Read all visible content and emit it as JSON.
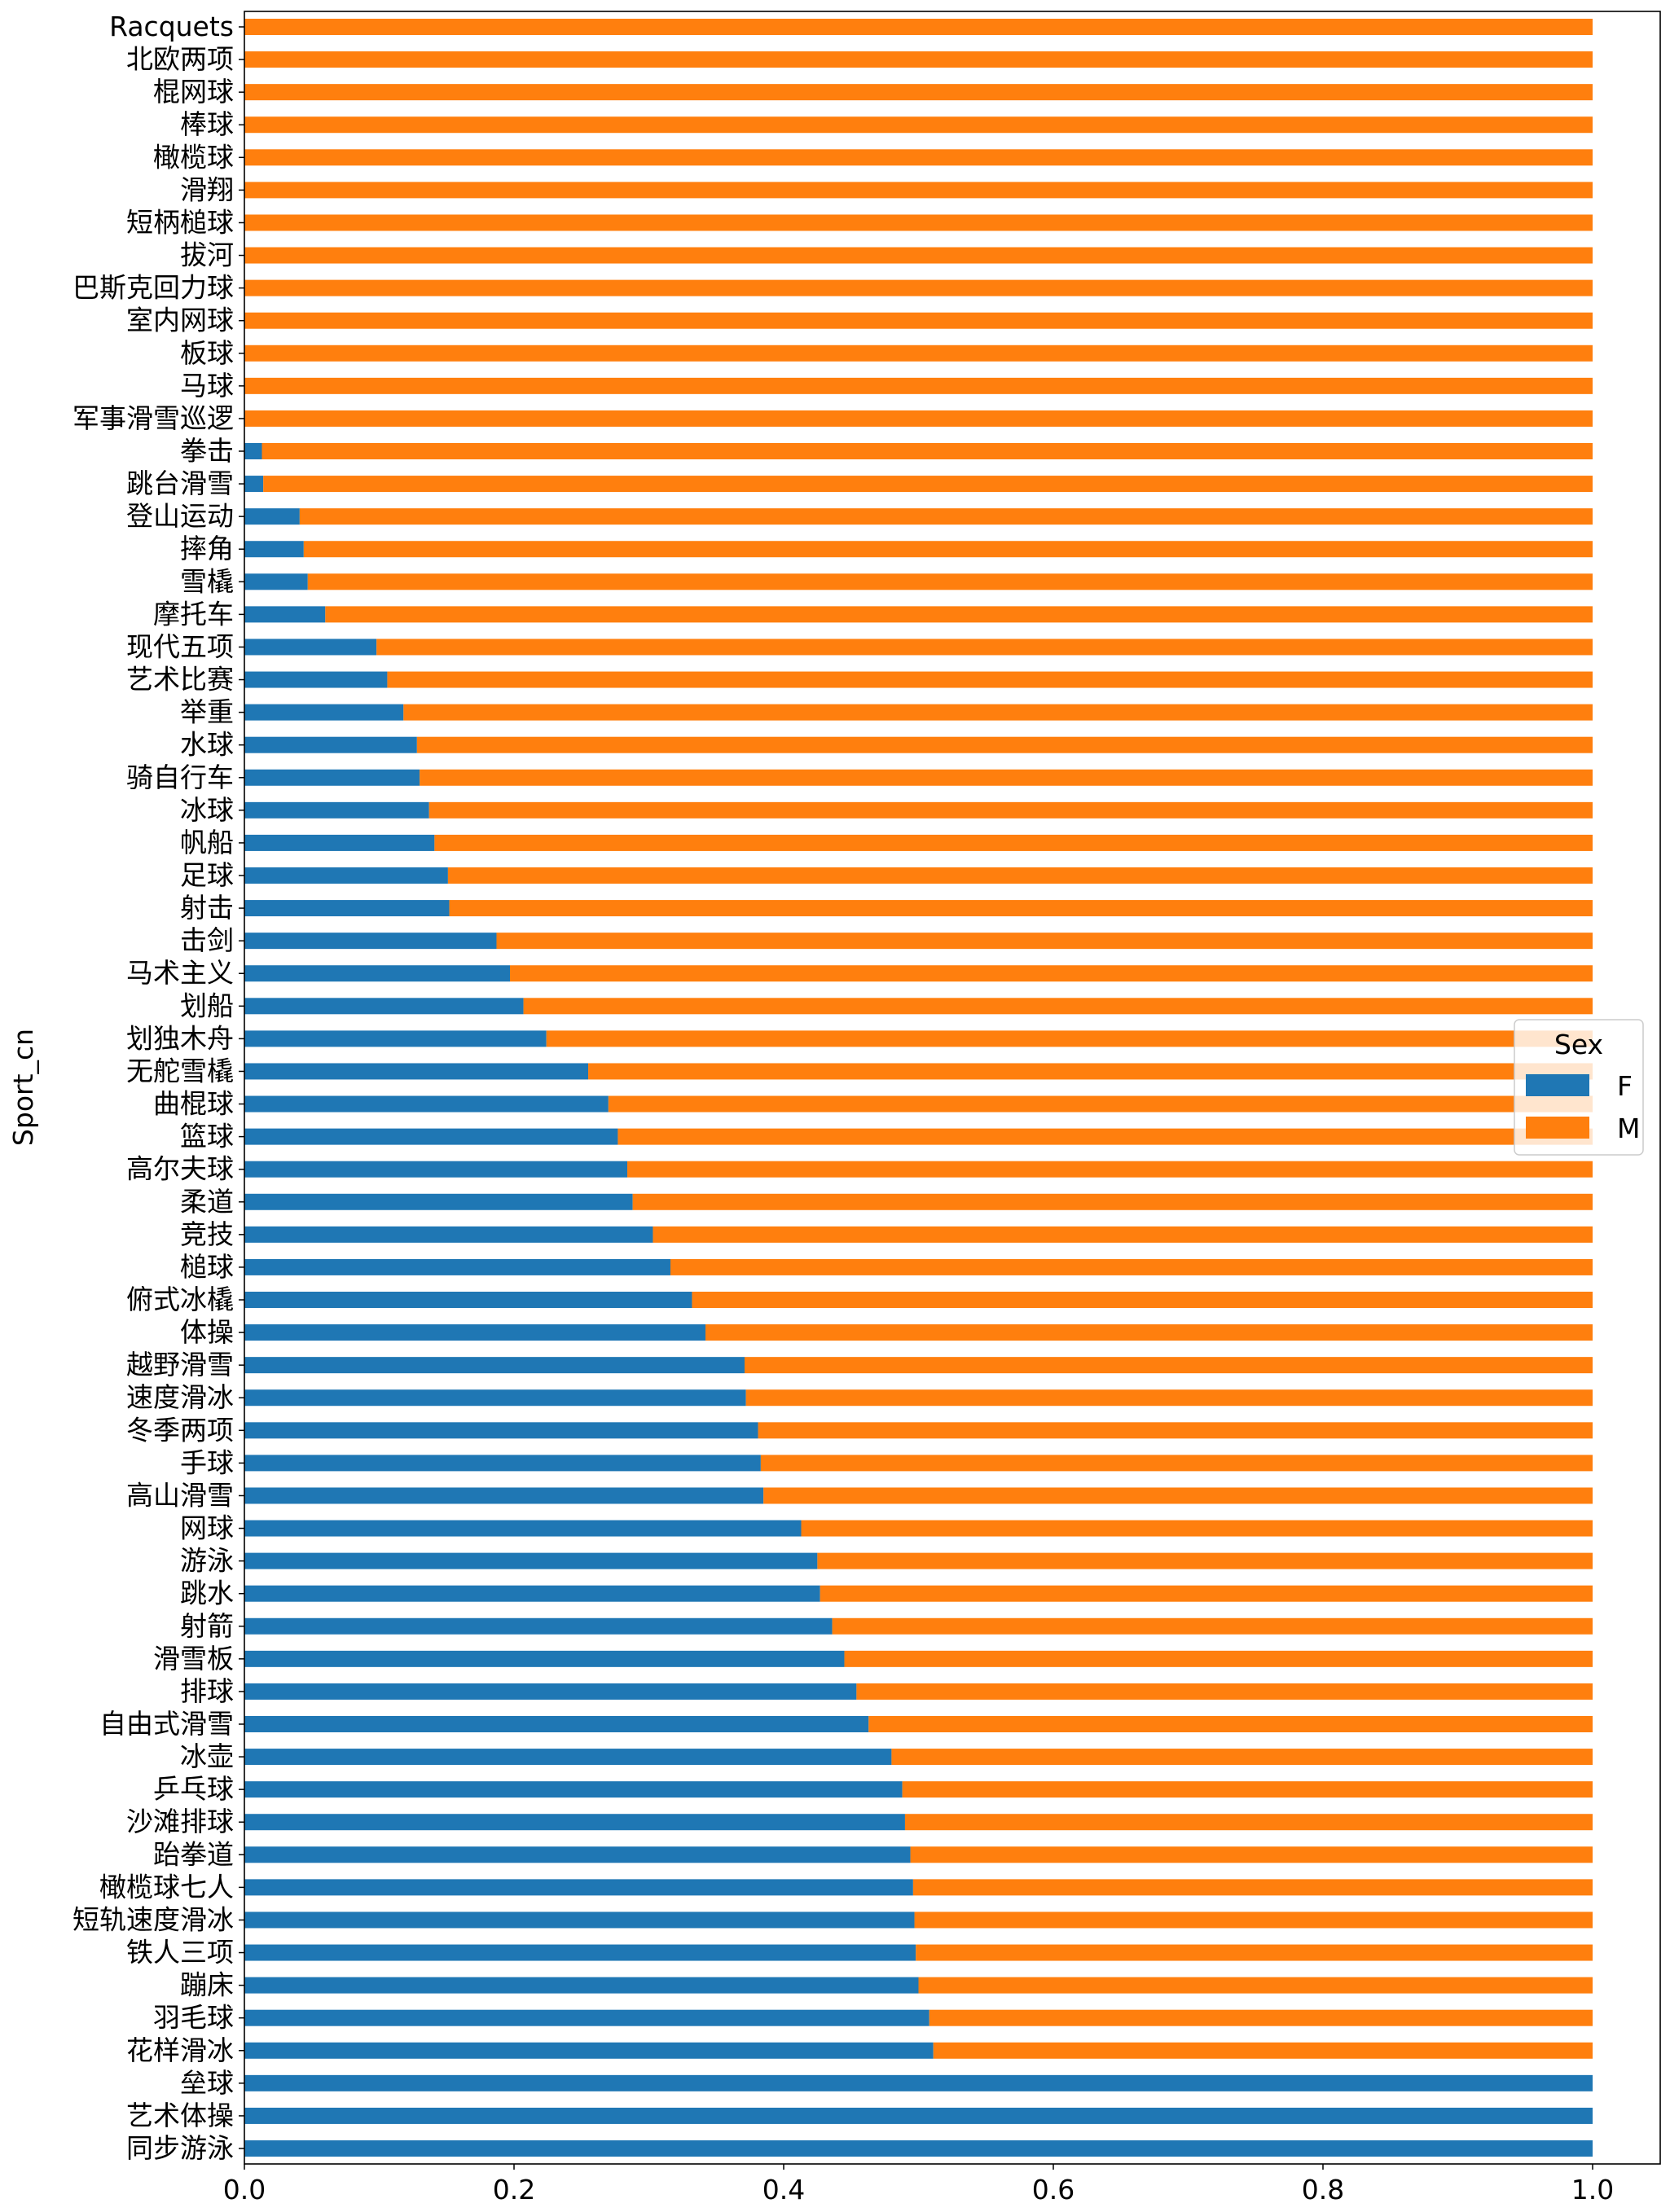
{
  "chart_data": {
    "type": "bar",
    "orientation": "horizontal",
    "stacked": true,
    "title": "",
    "xlabel": "",
    "ylabel": "Sport_cn",
    "xlim": [
      0,
      1.0
    ],
    "xticks": [
      "0.0",
      "0.2",
      "0.4",
      "0.6",
      "0.8",
      "1.0"
    ],
    "grid": false,
    "legend": {
      "title": "Sex",
      "placement": "center-right"
    },
    "colors": {
      "F": "#1f77b4",
      "M": "#ff7f0e"
    },
    "categories": [
      "Racquets",
      "北欧两项",
      "棍网球",
      "棒球",
      "橄榄球",
      "滑翔",
      "短柄槌球",
      "拔河",
      "巴斯克回力球",
      "室内网球",
      "板球",
      "马球",
      "军事滑雪巡逻",
      "拳击",
      "跳台滑雪",
      "登山运动",
      "摔角",
      "雪橇",
      "摩托车",
      "现代五项",
      "艺术比赛",
      "举重",
      "水球",
      "骑自行车",
      "冰球",
      "帆船",
      "足球",
      "射击",
      "击剑",
      "马术主义",
      "划船",
      "划独木舟",
      "无舵雪橇",
      "曲棍球",
      "篮球",
      "高尔夫球",
      "柔道",
      "竞技",
      "槌球",
      "俯式冰橇",
      "体操",
      "越野滑雪",
      "速度滑冰",
      "冬季两项",
      "手球",
      "高山滑雪",
      "网球",
      "游泳",
      "跳水",
      "射箭",
      "滑雪板",
      "排球",
      "自由式滑雪",
      "冰壶",
      "乒乓球",
      "沙滩排球",
      "跆拳道",
      "橄榄球七人",
      "短轨速度滑冰",
      "铁人三项",
      "蹦床",
      "羽毛球",
      "花样滑冰",
      "垒球",
      "艺术体操",
      "同步游泳"
    ],
    "series": [
      {
        "name": "F",
        "values": [
          0,
          0,
          0,
          0,
          0,
          0,
          0,
          0,
          0,
          0,
          0,
          0,
          0,
          0.013,
          0.014,
          0.041,
          0.044,
          0.047,
          0.06,
          0.098,
          0.106,
          0.118,
          0.128,
          0.13,
          0.137,
          0.141,
          0.151,
          0.152,
          0.187,
          0.197,
          0.207,
          0.224,
          0.255,
          0.27,
          0.277,
          0.284,
          0.288,
          0.303,
          0.316,
          0.332,
          0.342,
          0.371,
          0.372,
          0.381,
          0.383,
          0.385,
          0.413,
          0.425,
          0.427,
          0.436,
          0.445,
          0.454,
          0.463,
          0.48,
          0.488,
          0.49,
          0.494,
          0.496,
          0.497,
          0.498,
          0.5,
          0.508,
          0.511,
          1.0,
          1.0,
          1.0
        ]
      },
      {
        "name": "M",
        "values": [
          1,
          1,
          1,
          1,
          1,
          1,
          1,
          1,
          1,
          1,
          1,
          1,
          1,
          0.987,
          0.986,
          0.959,
          0.956,
          0.953,
          0.94,
          0.902,
          0.894,
          0.882,
          0.872,
          0.87,
          0.863,
          0.859,
          0.849,
          0.848,
          0.813,
          0.803,
          0.793,
          0.776,
          0.745,
          0.73,
          0.723,
          0.716,
          0.712,
          0.697,
          0.684,
          0.668,
          0.658,
          0.629,
          0.628,
          0.619,
          0.617,
          0.615,
          0.587,
          0.575,
          0.573,
          0.564,
          0.555,
          0.546,
          0.537,
          0.52,
          0.512,
          0.51,
          0.506,
          0.504,
          0.503,
          0.502,
          0.5,
          0.492,
          0.489,
          0,
          0,
          0
        ]
      }
    ]
  }
}
